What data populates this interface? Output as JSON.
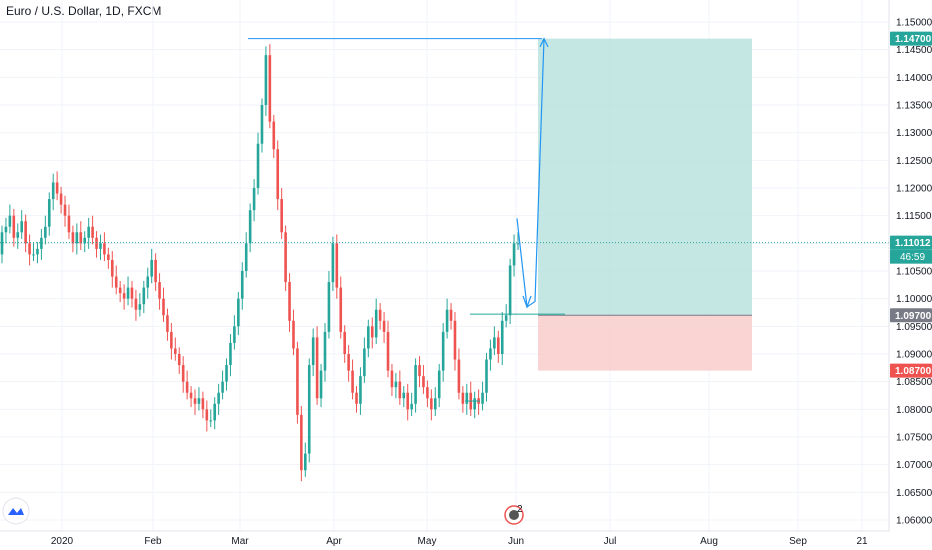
{
  "header": {
    "title": "Euro / U.S. Dollar, 1D, FXCM"
  },
  "colors": {
    "up": "#26a69a",
    "down": "#ef5350",
    "profit_zone": "#b2dfdb",
    "loss_zone": "#f8c9c7",
    "target_label_bg": "#26a69a",
    "stop_label_bg": "#ef5350",
    "entry_label_bg": "#787b86",
    "current_label_bg": "#26a69a",
    "projection_line": "#2196f3",
    "grid": "#f0f3fa"
  },
  "icons": {
    "logo": "tradingview-logo-icon",
    "event_marker": "event-flag-icon"
  },
  "event_marker_count": "2",
  "chart_data": {
    "type": "candlestick",
    "title": "Euro / U.S. Dollar, 1D, FXCM",
    "y_axis": {
      "ylim": [
        1.0595,
        1.1525
      ],
      "ticks": [
        "1.15000",
        "1.14500",
        "1.14000",
        "1.13500",
        "1.13000",
        "1.12500",
        "1.12000",
        "1.11500",
        "1.11000",
        "1.10500",
        "1.10000",
        "1.09500",
        "1.09000",
        "1.08500",
        "1.08000",
        "1.07500",
        "1.07000",
        "1.06500",
        "1.06000"
      ]
    },
    "x_axis": {
      "ticks": [
        "2020",
        "Feb",
        "Mar",
        "Apr",
        "May",
        "Jun",
        "Jul",
        "Aug",
        "Sep",
        "21"
      ]
    },
    "grid": true,
    "price_labels": {
      "target": "1.14700",
      "current": "1.11012",
      "countdown": "46:59",
      "entry": "1.09700",
      "stop": "1.08700"
    },
    "candles_close": [
      1.112,
      1.113,
      1.115,
      1.111,
      1.112,
      1.114,
      1.11,
      1.108,
      1.108,
      1.109,
      1.111,
      1.113,
      1.118,
      1.121,
      1.119,
      1.117,
      1.115,
      1.112,
      1.11,
      1.112,
      1.11,
      1.111,
      1.113,
      1.111,
      1.109,
      1.11,
      1.108,
      1.107,
      1.104,
      1.102,
      1.101,
      1.1,
      1.102,
      1.1,
      1.098,
      1.099,
      1.102,
      1.104,
      1.107,
      1.103,
      1.1,
      1.097,
      1.094,
      1.091,
      1.09,
      1.088,
      1.085,
      1.083,
      1.082,
      1.081,
      1.082,
      1.08,
      1.078,
      1.078,
      1.081,
      1.083,
      1.085,
      1.088,
      1.092,
      1.095,
      1.1,
      1.105,
      1.11,
      1.116,
      1.12,
      1.128,
      1.135,
      1.144,
      1.132,
      1.127,
      1.118,
      1.112,
      1.103,
      1.096,
      1.091,
      1.079,
      1.069,
      1.072,
      1.088,
      1.093,
      1.082,
      1.087,
      1.094,
      1.103,
      1.11,
      1.102,
      1.094,
      1.09,
      1.087,
      1.083,
      1.081,
      1.086,
      1.091,
      1.095,
      1.093,
      1.098,
      1.096,
      1.094,
      1.087,
      1.084,
      1.085,
      1.082,
      1.083,
      1.08,
      1.081,
      1.088,
      1.086,
      1.084,
      1.082,
      1.08,
      1.082,
      1.087,
      1.094,
      1.098,
      1.096,
      1.089,
      1.083,
      1.081,
      1.083,
      1.08,
      1.082,
      1.081,
      1.083,
      1.089,
      1.091,
      1.093,
      1.09,
      1.096,
      1.097,
      1.106,
      1.11,
      1.11
    ]
  },
  "trade_setup": {
    "type": "long_position",
    "entry": 1.097,
    "target": 1.147,
    "stop": 1.087,
    "start": "Jun",
    "end": "mid-Aug"
  },
  "projection": {
    "swing_low": 1.0985,
    "swing_high": 1.147
  }
}
